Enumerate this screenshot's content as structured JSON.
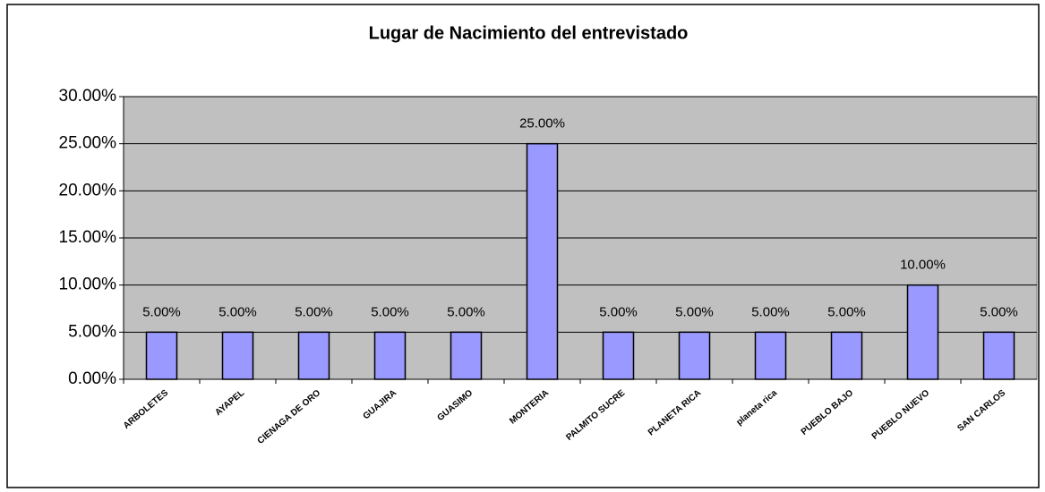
{
  "chart_data": {
    "type": "bar",
    "title": "Lugar de Nacimiento del entrevistado",
    "categories": [
      "ARBOLETES",
      "AYAPEL",
      "CIENAGA DE ORO",
      "GUAJIRA",
      "GUASIMO",
      "MONTERIA",
      "PALMITO SUCRE",
      "PLANETA RICA",
      "planeta rica",
      "PUEBLO BAJO",
      "PUEBLO NUEVO",
      "SAN CARLOS"
    ],
    "values": [
      5,
      5,
      5,
      5,
      5,
      25,
      5,
      5,
      5,
      5,
      10,
      5
    ],
    "value_labels": [
      "5.00%",
      "5.00%",
      "5.00%",
      "5.00%",
      "5.00%",
      "25.00%",
      "5.00%",
      "5.00%",
      "5.00%",
      "5.00%",
      "10.00%",
      "5.00%"
    ],
    "color": "#9999ff",
    "ylim": [
      0,
      30
    ],
    "yticks": [
      {
        "value": 0,
        "label": "0.00%"
      },
      {
        "value": 5,
        "label": "5.00%"
      },
      {
        "value": 10,
        "label": "10.00%"
      },
      {
        "value": 15,
        "label": "15.00%"
      },
      {
        "value": 20,
        "label": "20.00%"
      },
      {
        "value": 25,
        "label": "25.00%"
      },
      {
        "value": 30,
        "label": "30.00%"
      }
    ],
    "grid": true
  }
}
